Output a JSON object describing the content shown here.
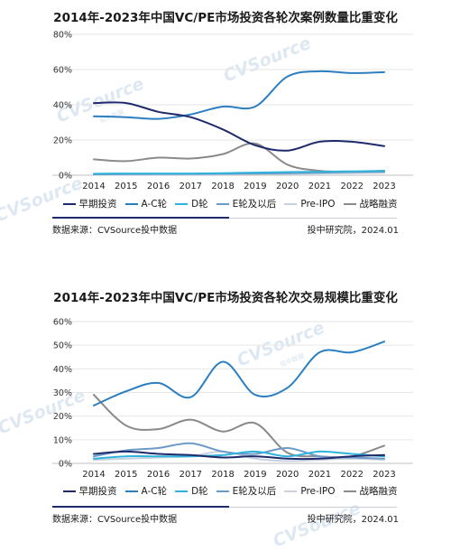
{
  "watermark": {
    "brand": "CVSource",
    "sub": "投中数据"
  },
  "chart_data": [
    {
      "type": "line",
      "title": "2014年-2023年中国VC/PE市场投资各轮次案例数量比重变化",
      "xlabel": "",
      "ylabel": "",
      "x": [
        "2014",
        "2015",
        "2016",
        "2017",
        "2018",
        "2019",
        "2020",
        "2021",
        "2022",
        "2023"
      ],
      "y_ticks": [
        "0%",
        "20%",
        "40%",
        "60%",
        "80%"
      ],
      "ylim": [
        0,
        80
      ],
      "grid": "horizontal",
      "legend_position": "bottom",
      "series": [
        {
          "name": "早期投资",
          "color": "#1f2a6b",
          "values": [
            41,
            41,
            36,
            33,
            26,
            17,
            14,
            19,
            19,
            16.5
          ]
        },
        {
          "name": "A-C轮",
          "color": "#2b7fc0",
          "values": [
            33.5,
            33,
            32,
            34.5,
            39,
            39,
            56,
            59,
            58,
            58.5
          ]
        },
        {
          "name": "D轮",
          "color": "#2fb3da",
          "values": [
            0.8,
            1,
            1,
            1,
            1.2,
            1.5,
            1.8,
            2,
            2.2,
            2.5
          ]
        },
        {
          "name": "E轮及以后",
          "color": "#6c9ac8",
          "values": [
            0.5,
            0.6,
            0.7,
            0.7,
            0.8,
            1,
            1.2,
            1.5,
            1.8,
            2
          ]
        },
        {
          "name": "Pre-IPO",
          "color": "#c8d2de",
          "values": [
            0.3,
            0.3,
            0.4,
            0.4,
            0.5,
            0.6,
            0.8,
            1,
            1.2,
            1.4
          ]
        },
        {
          "name": "战略融资",
          "color": "#8a8a8a",
          "values": [
            9,
            8,
            10,
            9.5,
            12,
            18,
            6,
            2.5,
            2,
            2.5
          ]
        }
      ],
      "source": "数据来源：CVSource投中数据",
      "credit": "投中研究院，2024.01"
    },
    {
      "type": "line",
      "title": "2014年-2023年中国VC/PE市场投资各轮次交易规模比重变化",
      "xlabel": "",
      "ylabel": "",
      "x": [
        "2014",
        "2015",
        "2016",
        "2017",
        "2018",
        "2019",
        "2020",
        "2021",
        "2022",
        "2023"
      ],
      "y_ticks": [
        "0%",
        "10%",
        "20%",
        "30%",
        "40%",
        "50%",
        "60%"
      ],
      "ylim": [
        0,
        60
      ],
      "grid": "horizontal",
      "legend_position": "bottom",
      "series": [
        {
          "name": "早期投资",
          "color": "#1f2a6b",
          "values": [
            4,
            5,
            4,
            3.5,
            2.5,
            3,
            2,
            2,
            3,
            3.5
          ]
        },
        {
          "name": "A-C轮",
          "color": "#2b7fc0",
          "values": [
            24.5,
            30.5,
            34,
            28,
            43,
            29,
            32,
            47,
            47,
            51.5
          ]
        },
        {
          "name": "D轮",
          "color": "#2fb3da",
          "values": [
            2,
            3,
            3,
            3,
            3.5,
            5,
            3,
            5,
            4,
            3
          ]
        },
        {
          "name": "E轮及以后",
          "color": "#6c9ac8",
          "values": [
            3,
            5.5,
            6.5,
            8.5,
            5,
            4,
            6.5,
            3,
            2.5,
            2
          ]
        },
        {
          "name": "Pre-IPO",
          "color": "#c8d2de",
          "values": [
            1.5,
            2,
            2.5,
            3,
            5,
            2,
            1,
            1.5,
            2,
            1.5
          ]
        },
        {
          "name": "战略融资",
          "color": "#8a8a8a",
          "values": [
            29,
            16,
            14.5,
            18.5,
            13.5,
            17,
            4.5,
            3,
            3,
            7.5
          ]
        }
      ],
      "source": "数据来源：CVSource投中数据",
      "credit": "投中研究院，2024.01"
    }
  ]
}
